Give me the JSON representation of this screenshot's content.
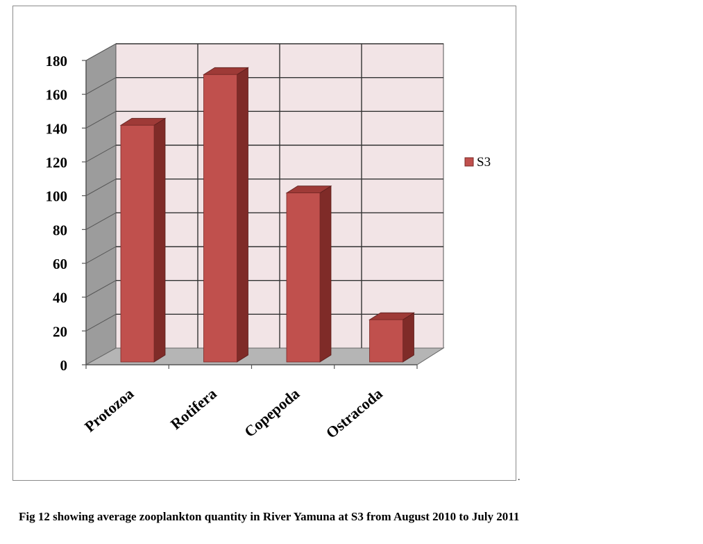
{
  "chart_data": {
    "type": "bar",
    "title": "",
    "xlabel": "",
    "ylabel": "",
    "categories": [
      "Protozoa",
      "Rotifera",
      "Copepoda",
      "Ostracoda"
    ],
    "series": [
      {
        "name": "S3",
        "values": [
          140,
          170,
          100,
          25
        ]
      }
    ],
    "yticks": [
      "0",
      "20",
      "40",
      "60",
      "80",
      "100",
      "120",
      "140",
      "160",
      "180"
    ],
    "ylim": [
      0,
      180
    ],
    "grid": true,
    "legend_position": "right",
    "style": "3d-column",
    "colors": {
      "bar_front": "#c0504d",
      "bar_side": "#7f2b28",
      "bar_top": "#9e3a37",
      "back_wall": "#f2e4e6",
      "side_wall": "#9c9c9c",
      "floor": "#b5b5b5"
    }
  },
  "caption": "Fig 12 showing average zooplankton quantity in River Yamuna at S3 from August 2010 to July 2011",
  "stray_mark": "."
}
